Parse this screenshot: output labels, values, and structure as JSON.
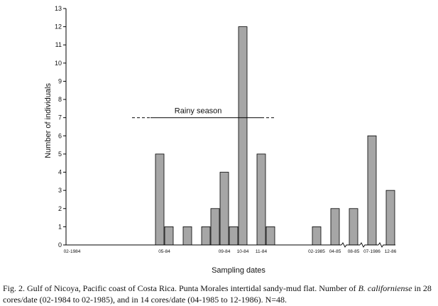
{
  "chart_data": {
    "type": "bar",
    "xlabel": "Sampling dates",
    "ylabel": "Number of individuals",
    "ylim": [
      0,
      13
    ],
    "yticks": [
      0,
      1,
      2,
      3,
      4,
      5,
      6,
      7,
      8,
      9,
      10,
      11,
      12,
      13
    ],
    "grid": false,
    "legend": "none",
    "bar_color": "#a6a6a6",
    "bars": [
      {
        "x": 5.0,
        "value": 5
      },
      {
        "x": 5.5,
        "value": 1
      },
      {
        "x": 6.5,
        "value": 1
      },
      {
        "x": 7.5,
        "value": 1
      },
      {
        "x": 8.0,
        "value": 2
      },
      {
        "x": 8.5,
        "value": 4
      },
      {
        "x": 9.0,
        "value": 1
      },
      {
        "x": 9.5,
        "value": 12
      },
      {
        "x": 10.5,
        "value": 5
      },
      {
        "x": 11.0,
        "value": 1
      },
      {
        "x": 13.5,
        "value": 1
      },
      {
        "x": 14.5,
        "value": 2
      },
      {
        "x": 15.5,
        "value": 2
      },
      {
        "x": 16.5,
        "value": 6
      },
      {
        "x": 17.5,
        "value": 3
      }
    ],
    "xtick_labels": [
      {
        "x": 0.25,
        "label": "02-1984"
      },
      {
        "x": 5.25,
        "label": "05-84"
      },
      {
        "x": 8.5,
        "label": "09-84"
      },
      {
        "x": 9.5,
        "label": "10-84"
      },
      {
        "x": 10.5,
        "label": "11-84"
      },
      {
        "x": 13.5,
        "label": "02-1985"
      },
      {
        "x": 14.5,
        "label": "04-85"
      },
      {
        "x": 15.5,
        "label": "08-85"
      },
      {
        "x": 16.5,
        "label": "07-1986"
      },
      {
        "x": 17.5,
        "label": "12-86"
      }
    ],
    "axis_breaks_x": [
      15.0,
      16.0,
      17.0
    ],
    "annotations": [
      {
        "text": "Rainy season",
        "x_start": 3.5,
        "x_end": 11.2,
        "solid_start": 4.5,
        "solid_end": 10.5,
        "y": 7
      }
    ]
  },
  "caption": {
    "part1": "Fig. 2. Gulf of Nicoya, Pacific coast of Costa Rica. Punta Morales intertidal sandy-mud flat. Number of ",
    "species": "B. californiense",
    "part2": " in 28 cores/date (02-1984 to 02-1985), and in 14 cores/date (04-1985 to 12-1986). N=48."
  }
}
